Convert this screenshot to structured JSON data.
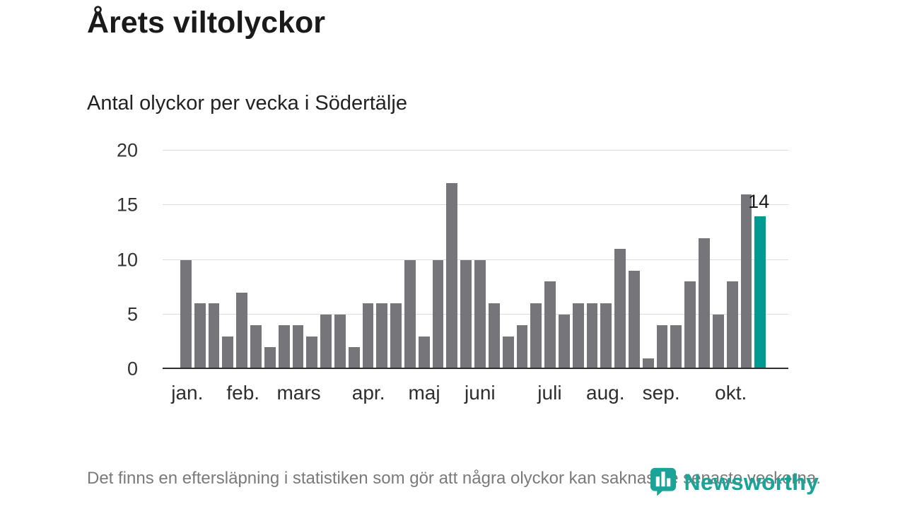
{
  "page": {
    "title": "Årets viltolyckor",
    "subtitle": "Antal olyckor per vecka i Södertälje",
    "footnote": "Det finns en eftersläpning i statistiken som gör att några olyckor kan saknas de senaste veckorna."
  },
  "branding": {
    "logo_text": "Newsworthy",
    "logo_color": "#1aa396"
  },
  "chart_data": {
    "type": "bar",
    "title": "Årets viltolyckor",
    "subtitle": "Antal olyckor per vecka i Södertälje",
    "ylabel": "Antal olyckor per vecka",
    "xlabel": "",
    "ylim": [
      0,
      20
    ],
    "yticks": [
      0,
      5,
      10,
      15,
      20
    ],
    "grid": "horizontal",
    "bar_color": "#75757a",
    "highlight_color": "#009b90",
    "values": [
      10,
      6,
      6,
      3,
      7,
      4,
      2,
      4,
      4,
      3,
      5,
      5,
      2,
      6,
      6,
      6,
      10,
      3,
      10,
      17,
      10,
      10,
      6,
      3,
      4,
      6,
      8,
      5,
      6,
      6,
      6,
      11,
      9,
      1,
      4,
      4,
      8,
      12,
      5,
      8,
      16,
      14
    ],
    "highlight_index": 41,
    "highlight_value_label": "14",
    "month_labels": [
      {
        "label": "jan.",
        "week": 1
      },
      {
        "label": "feb.",
        "week": 5
      },
      {
        "label": "mars",
        "week": 9
      },
      {
        "label": "apr.",
        "week": 14
      },
      {
        "label": "maj",
        "week": 18
      },
      {
        "label": "juni",
        "week": 22
      },
      {
        "label": "juli",
        "week": 27
      },
      {
        "label": "aug.",
        "week": 31
      },
      {
        "label": "sep.",
        "week": 35
      },
      {
        "label": "okt.",
        "week": 40
      }
    ]
  }
}
